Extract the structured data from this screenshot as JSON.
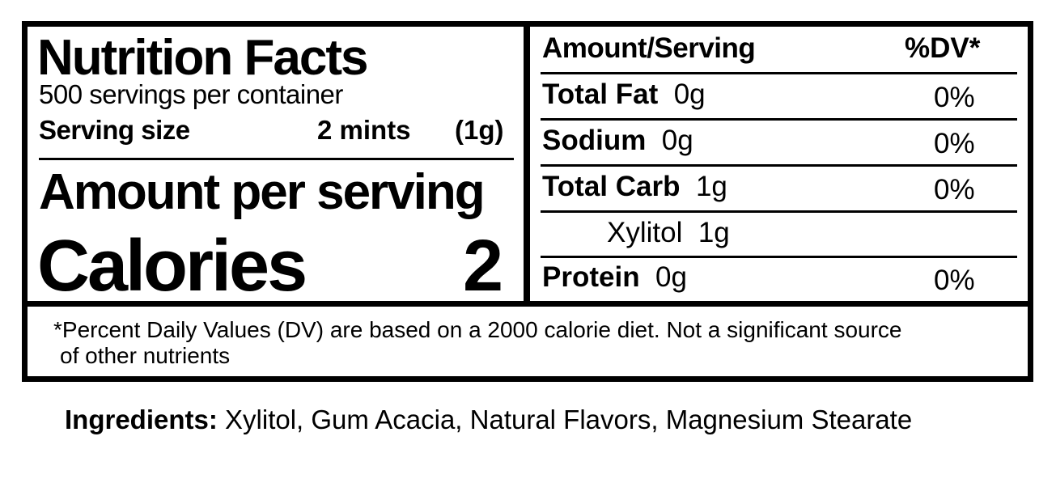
{
  "title": "Nutrition Facts",
  "servings_per_container": "500 servings per container",
  "serving_size": {
    "label": "Serving size",
    "amount": "2 mints",
    "weight": "(1g)"
  },
  "amount_per_serving": "Amount per serving",
  "calories": {
    "label": "Calories",
    "value": "2"
  },
  "table": {
    "header": {
      "amount": "Amount/Serving",
      "dv": "%DV*"
    },
    "rows": [
      {
        "name": "Total Fat",
        "amount": "0g",
        "dv": "0%"
      },
      {
        "name": "Sodium",
        "amount": "0g",
        "dv": "0%"
      },
      {
        "name": "Total Carb",
        "amount": "1g",
        "dv": "0%"
      },
      {
        "name": "Xylitol",
        "amount": "1g",
        "dv": ""
      },
      {
        "name": "Protein",
        "amount": "0g",
        "dv": "0%"
      }
    ]
  },
  "footnote_line1": "*Percent Daily Values (DV) are based on a 2000 calorie diet. Not a significant source",
  "footnote_line2": "of other nutrients",
  "ingredients": {
    "label": "Ingredients:",
    "text": " Xylitol, Gum Acacia, Natural Flavors, Magnesium Stearate"
  }
}
